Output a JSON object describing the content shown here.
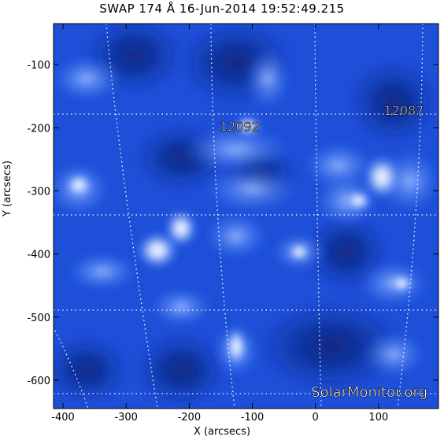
{
  "title": "SWAP 174 Å 16-Jun-2014 19:52:49.215",
  "x_axis": {
    "label": "X (arcsecs)",
    "range": [
      -415,
      195
    ],
    "ticks": [
      -400,
      -300,
      -200,
      -100,
      0,
      100
    ]
  },
  "y_axis": {
    "label": "Y (arcsecs)",
    "range": [
      -645,
      -35
    ],
    "ticks": [
      -100,
      -200,
      -300,
      -400,
      -500,
      -600
    ]
  },
  "regions": [
    {
      "label": "12092",
      "x": -120,
      "y": -205
    },
    {
      "label": "12087",
      "x": 140,
      "y": -180
    }
  ],
  "watermark": "SolarMonitor.org",
  "colors": {
    "background": "#1d4fd8",
    "dark": "#0a1f78",
    "bright": "#ffffff",
    "grid": "#ffffff"
  }
}
